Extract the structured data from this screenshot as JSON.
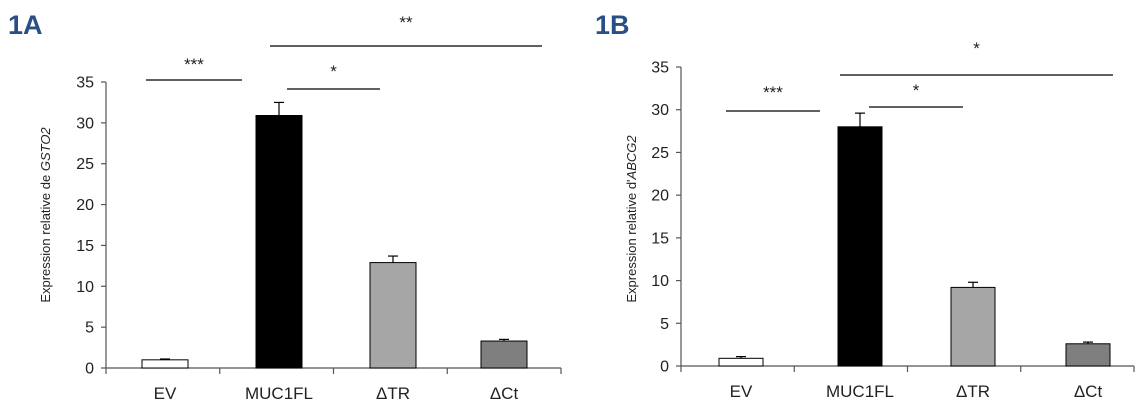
{
  "chart_data": [
    {
      "panel": "1A",
      "type": "bar",
      "categories": [
        "EV",
        "MUC1FL",
        "ΔTR",
        "ΔCt"
      ],
      "values": [
        1.0,
        30.9,
        12.9,
        3.3
      ],
      "errors": [
        0.1,
        1.6,
        0.8,
        0.2
      ],
      "colors": [
        "#ffffff",
        "#000000",
        "#a6a6a6",
        "#7f7f7f"
      ],
      "ylabel_prefix": "Expression relative de ",
      "ylabel_gene": "GSTO2",
      "ylim": [
        0,
        35
      ],
      "yticks": [
        "0",
        "5",
        "10",
        "15",
        "20",
        "25",
        "30",
        "35"
      ],
      "significance": [
        {
          "label": "***"
        },
        {
          "label": "*"
        },
        {
          "label": "**"
        }
      ]
    },
    {
      "panel": "1B",
      "type": "bar",
      "categories": [
        "EV",
        "MUC1FL",
        "ΔTR",
        "ΔCt"
      ],
      "values": [
        0.9,
        28.0,
        9.2,
        2.6
      ],
      "errors": [
        0.2,
        1.6,
        0.6,
        0.2
      ],
      "colors": [
        "#ffffff",
        "#000000",
        "#a6a6a6",
        "#7f7f7f"
      ],
      "ylabel_prefix": "Expression relative d'",
      "ylabel_gene": "ABCG2",
      "ylim": [
        0,
        35
      ],
      "yticks": [
        "0",
        "5",
        "10",
        "15",
        "20",
        "25",
        "30",
        "35"
      ],
      "significance": [
        {
          "label": "***"
        },
        {
          "label": "*"
        },
        {
          "label": "*"
        }
      ]
    }
  ]
}
